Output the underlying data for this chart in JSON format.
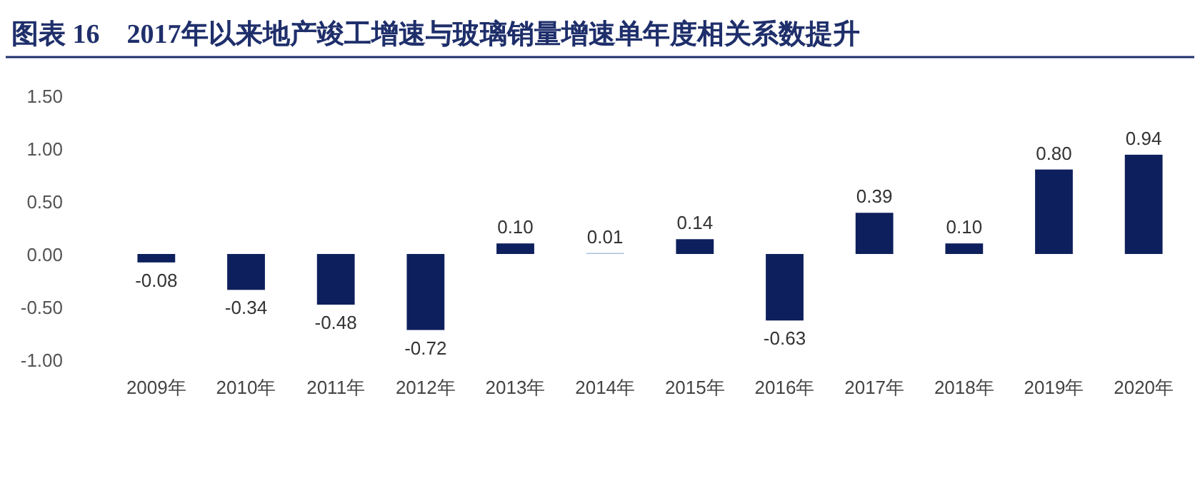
{
  "chart_data": {
    "type": "bar",
    "title": "图表 16　2017年以来地产竣工增速与玻璃销量增速单年度相关系数提升",
    "categories": [
      "2009年",
      "2010年",
      "2011年",
      "2012年",
      "2013年",
      "2014年",
      "2015年",
      "2016年",
      "2017年",
      "2018年",
      "2019年",
      "2020年"
    ],
    "values": [
      -0.08,
      -0.34,
      -0.48,
      -0.72,
      0.1,
      0.01,
      0.14,
      -0.63,
      0.39,
      0.1,
      0.8,
      0.94
    ],
    "colors": [
      "#0d1f5c",
      "#0d1f5c",
      "#0d1f5c",
      "#0d1f5c",
      "#0d1f5c",
      "#a9bfe3",
      "#0d1f5c",
      "#0d1f5c",
      "#0d1f5c",
      "#0d1f5c",
      "#0d1f5c",
      "#0d1f5c"
    ],
    "value_labels": [
      "-0.08",
      "-0.34",
      "-0.48",
      "-0.72",
      "0.10",
      "0.01",
      "0.14",
      "-0.63",
      "0.39",
      "0.10",
      "0.80",
      "0.94"
    ],
    "ylim": [
      -1.0,
      1.5
    ],
    "yticks": [
      {
        "value": 1.5,
        "label": "1.50"
      },
      {
        "value": 1.0,
        "label": "1.00"
      },
      {
        "value": 0.5,
        "label": "0.50"
      },
      {
        "value": 0,
        "label": "0.00"
      },
      {
        "value": -0.5,
        "label": "-0.50"
      },
      {
        "value": -1.0,
        "label": "-1.00"
      }
    ],
    "grid": false
  }
}
